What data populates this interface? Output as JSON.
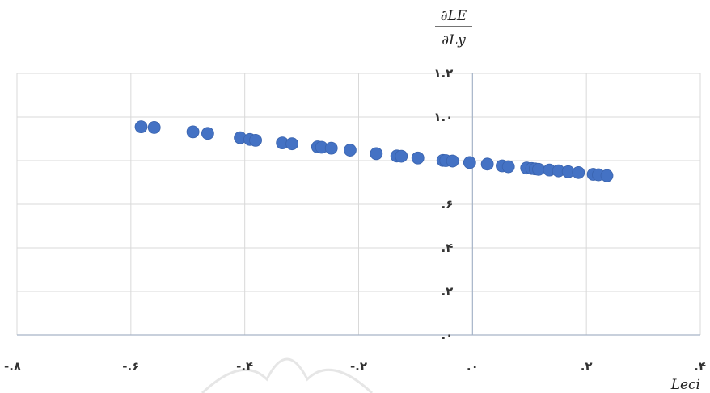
{
  "chart_data": {
    "type": "scatter",
    "title": "",
    "xlabel": "Leci",
    "ylabel_numerator": "∂LE",
    "ylabel_denominator": "∂Ly",
    "xlim": [
      -0.8,
      0.4
    ],
    "ylim": [
      0,
      1.2
    ],
    "x_ticks": [
      {
        "value": -0.8,
        "label": "-.۸"
      },
      {
        "value": -0.6,
        "label": "-.۶"
      },
      {
        "value": -0.4,
        "label": "-.۴"
      },
      {
        "value": -0.2,
        "label": "-.۲"
      },
      {
        "value": 0.0,
        "label": ".۰"
      },
      {
        "value": 0.2,
        "label": ".۲"
      },
      {
        "value": 0.4,
        "label": ".۴"
      }
    ],
    "y_ticks": [
      {
        "value": 0.0,
        "label": ".۰"
      },
      {
        "value": 0.2,
        "label": ".۲"
      },
      {
        "value": 0.4,
        "label": ".۴"
      },
      {
        "value": 0.6,
        "label": ".۶"
      },
      {
        "value": 0.8,
        "label": ".۸"
      },
      {
        "value": 1.0,
        "label": "۱.۰"
      },
      {
        "value": 1.2,
        "label": "۱.۲"
      }
    ],
    "grid": true,
    "marker_color": "#4472c4",
    "series": [
      {
        "points": [
          [
            -0.582,
            0.955
          ],
          [
            -0.559,
            0.952
          ],
          [
            -0.491,
            0.932
          ],
          [
            -0.465,
            0.925
          ],
          [
            -0.408,
            0.905
          ],
          [
            -0.391,
            0.897
          ],
          [
            -0.381,
            0.893
          ],
          [
            -0.334,
            0.881
          ],
          [
            -0.317,
            0.877
          ],
          [
            -0.272,
            0.863
          ],
          [
            -0.265,
            0.861
          ],
          [
            -0.248,
            0.857
          ],
          [
            -0.215,
            0.848
          ],
          [
            -0.169,
            0.832
          ],
          [
            -0.133,
            0.821
          ],
          [
            -0.125,
            0.82
          ],
          [
            -0.096,
            0.812
          ],
          [
            -0.052,
            0.801
          ],
          [
            -0.047,
            0.8
          ],
          [
            -0.035,
            0.798
          ],
          [
            -0.005,
            0.791
          ],
          [
            0.026,
            0.784
          ],
          [
            0.052,
            0.776
          ],
          [
            0.063,
            0.772
          ],
          [
            0.095,
            0.766
          ],
          [
            0.104,
            0.764
          ],
          [
            0.11,
            0.762
          ],
          [
            0.116,
            0.76
          ],
          [
            0.135,
            0.757
          ],
          [
            0.151,
            0.753
          ],
          [
            0.168,
            0.749
          ],
          [
            0.186,
            0.745
          ],
          [
            0.212,
            0.737
          ],
          [
            0.221,
            0.735
          ],
          [
            0.236,
            0.731
          ]
        ]
      }
    ]
  }
}
